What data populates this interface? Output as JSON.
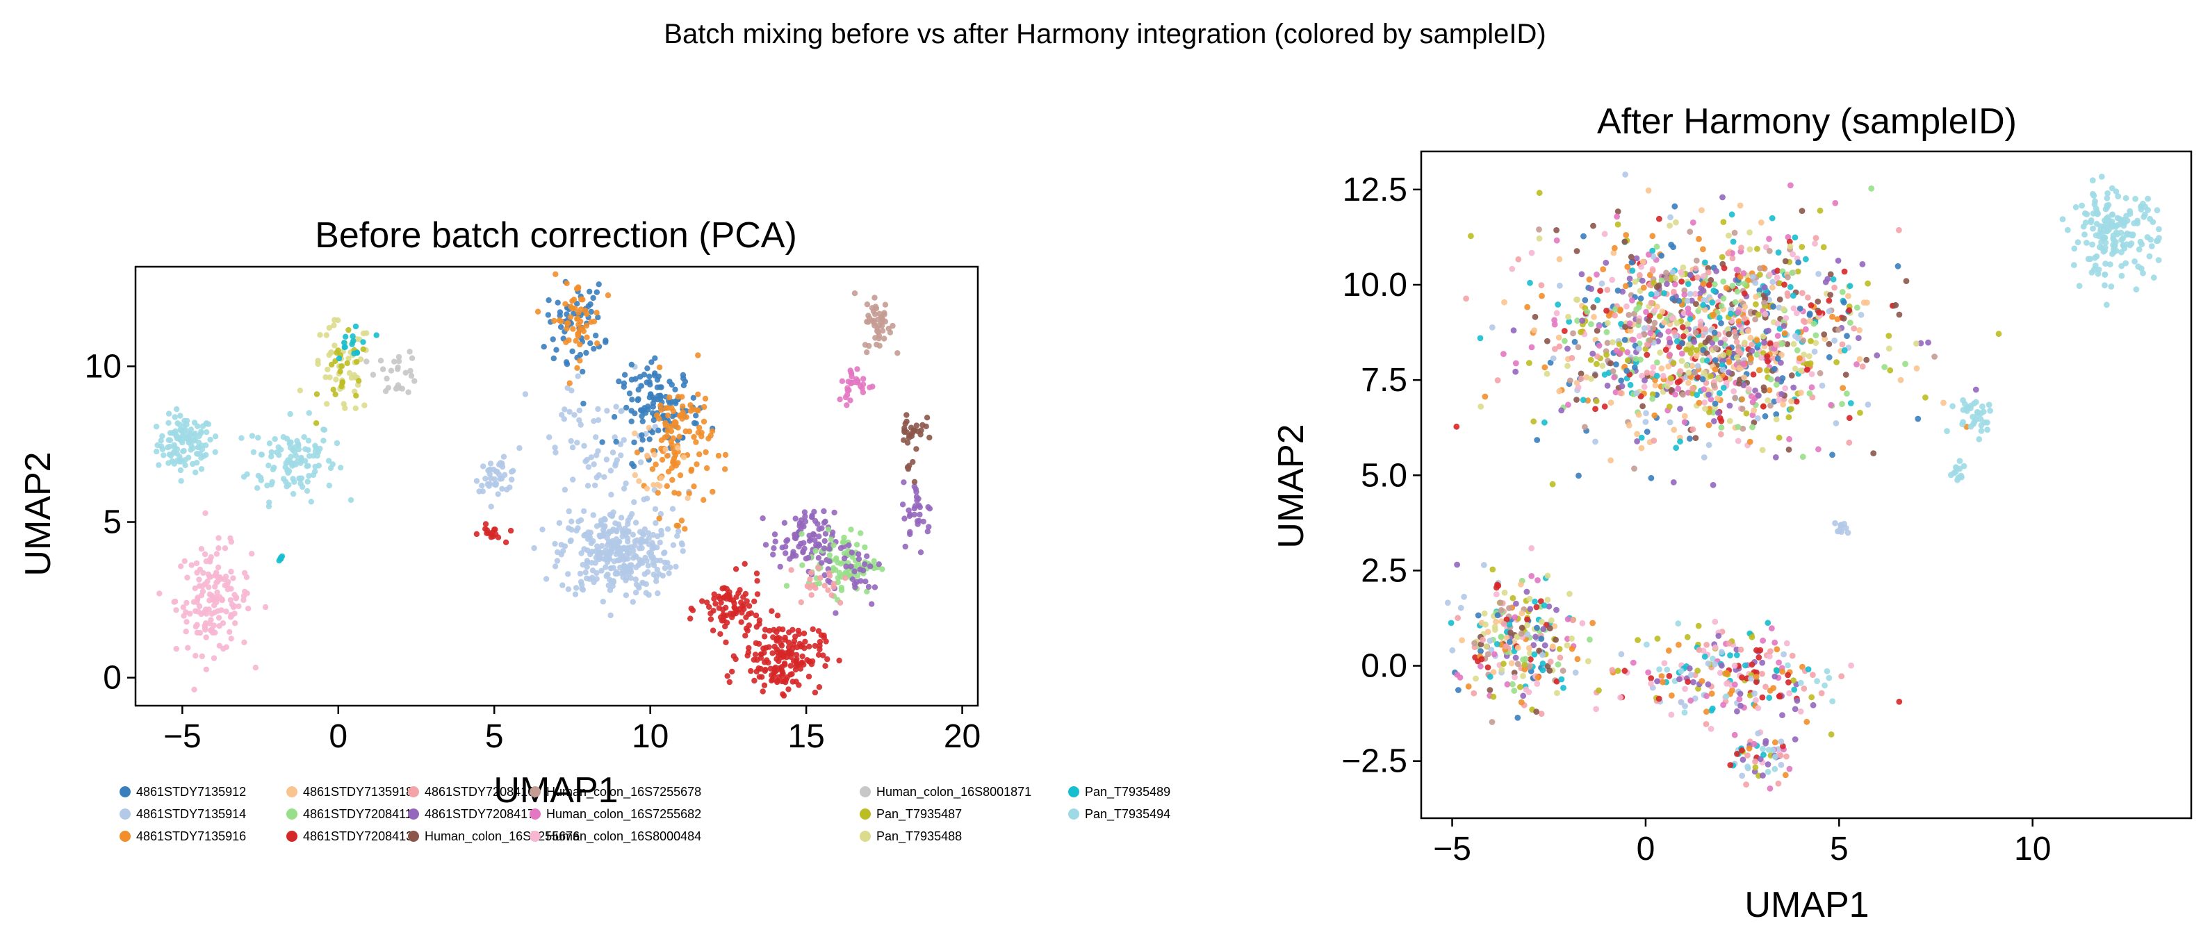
{
  "suptitle": "Batch mixing before vs after Harmony integration (colored by sampleID)",
  "legend_samples": [
    {
      "name": "4861STDY7135912",
      "color": "#3a7ebe"
    },
    {
      "name": "4861STDY7135914",
      "color": "#b3c9e8"
    },
    {
      "name": "4861STDY7135916",
      "color": "#f28e2b"
    },
    {
      "name": "4861STDY7135918",
      "color": "#f9c48f"
    },
    {
      "name": "4861STDY7208411",
      "color": "#98df8a"
    },
    {
      "name": "4861STDY7208413",
      "color": "#d62728"
    },
    {
      "name": "4861STDY7208416",
      "color": "#f4a3a8"
    },
    {
      "name": "4861STDY7208417",
      "color": "#9467bd"
    },
    {
      "name": "Human_colon_16S7255676",
      "color": "#8c564b"
    },
    {
      "name": "Human_colon_16S7255678",
      "color": "#c49c94"
    },
    {
      "name": "Human_colon_16S7255682",
      "color": "#e377c2"
    },
    {
      "name": "Human_colon_16S8000484",
      "color": "#f7b6d2"
    },
    {
      "name": "Human_colon_16S8001871",
      "color": "#c7c7c7"
    },
    {
      "name": "Pan_T7935487",
      "color": "#bcbd22"
    },
    {
      "name": "Pan_T7935488",
      "color": "#dbdb8d"
    },
    {
      "name": "Pan_T7935489",
      "color": "#17becf"
    },
    {
      "name": "Pan_T7935494",
      "color": "#9edae5"
    }
  ],
  "chart_data": [
    {
      "type": "scatter",
      "title": "Before batch correction (PCA)",
      "xlabel": "UMAP1",
      "ylabel": "UMAP2",
      "xlim": [
        -6.5,
        20.5
      ],
      "ylim": [
        -0.9,
        13.2
      ],
      "xticks": [
        -5,
        0,
        5,
        10,
        15,
        20
      ],
      "xtick_labels": [
        "−5",
        "0",
        "5",
        "10",
        "15",
        "20"
      ],
      "yticks": [
        0,
        5,
        10
      ],
      "ytick_labels": [
        "0",
        "5",
        "10"
      ],
      "grid": false,
      "legend": "below",
      "clusters": [
        {
          "sample": "Pan_T7935494",
          "cx": -4.9,
          "cy": 7.5,
          "sx": 0.45,
          "sy": 0.45,
          "n": 110
        },
        {
          "sample": "Pan_T7935494",
          "cx": -1.5,
          "cy": 7.0,
          "sx": 0.7,
          "sy": 0.65,
          "n": 110
        },
        {
          "sample": "Human_colon_16S8000484",
          "cx": -4.0,
          "cy": 2.5,
          "sx": 0.6,
          "sy": 0.85,
          "n": 150
        },
        {
          "sample": "Pan_T7935489",
          "cx": -1.8,
          "cy": 3.8,
          "sx": 0.08,
          "sy": 0.08,
          "n": 5
        },
        {
          "sample": "Pan_T7935488",
          "cx": 0.1,
          "cy": 9.9,
          "sx": 0.5,
          "sy": 0.75,
          "n": 50
        },
        {
          "sample": "Pan_T7935487",
          "cx": 0.2,
          "cy": 9.7,
          "sx": 0.4,
          "sy": 0.6,
          "n": 22
        },
        {
          "sample": "Pan_T7935489",
          "cx": 0.5,
          "cy": 10.7,
          "sx": 0.3,
          "sy": 0.45,
          "n": 14
        },
        {
          "sample": "Human_colon_16S8001871",
          "cx": 1.9,
          "cy": 9.8,
          "sx": 0.35,
          "sy": 0.35,
          "n": 25
        },
        {
          "sample": "4861STDY7135914",
          "cx": 5.1,
          "cy": 6.5,
          "sx": 0.35,
          "sy": 0.25,
          "n": 40
        },
        {
          "sample": "4861STDY7208413",
          "cx": 4.9,
          "cy": 4.6,
          "sx": 0.2,
          "sy": 0.15,
          "n": 16
        },
        {
          "sample": "4861STDY7135914",
          "cx": 8.9,
          "cy": 4.0,
          "sx": 0.9,
          "sy": 0.7,
          "n": 300
        },
        {
          "sample": "4861STDY7135914",
          "cx": 8.5,
          "cy": 7.2,
          "sx": 1.2,
          "sy": 1.3,
          "n": 70
        },
        {
          "sample": "4861STDY7135912",
          "cx": 7.6,
          "cy": 11.4,
          "sx": 0.45,
          "sy": 0.6,
          "n": 60
        },
        {
          "sample": "4861STDY7135916",
          "cx": 7.6,
          "cy": 11.5,
          "sx": 0.4,
          "sy": 0.65,
          "n": 50
        },
        {
          "sample": "4861STDY7135912",
          "cx": 10.3,
          "cy": 8.7,
          "sx": 0.65,
          "sy": 0.65,
          "n": 120
        },
        {
          "sample": "4861STDY7135916",
          "cx": 10.9,
          "cy": 7.5,
          "sx": 0.55,
          "sy": 1.1,
          "n": 110
        },
        {
          "sample": "4861STDY7135918",
          "cx": 10.2,
          "cy": 6.4,
          "sx": 0.6,
          "sy": 0.6,
          "n": 15
        },
        {
          "sample": "4861STDY7208413",
          "cx": 12.6,
          "cy": 2.2,
          "sx": 0.5,
          "sy": 0.5,
          "n": 80
        },
        {
          "sample": "4861STDY7208413",
          "cx": 14.2,
          "cy": 0.7,
          "sx": 0.65,
          "sy": 0.55,
          "n": 170
        },
        {
          "sample": "4861STDY7208417",
          "cx": 14.9,
          "cy": 4.4,
          "sx": 0.5,
          "sy": 0.45,
          "n": 80
        },
        {
          "sample": "4861STDY7208411",
          "cx": 16.2,
          "cy": 3.7,
          "sx": 0.55,
          "sy": 0.5,
          "n": 85
        },
        {
          "sample": "4861STDY7208417",
          "cx": 16.3,
          "cy": 3.5,
          "sx": 0.7,
          "sy": 0.6,
          "n": 40
        },
        {
          "sample": "4861STDY7208416",
          "cx": 15.4,
          "cy": 3.1,
          "sx": 0.5,
          "sy": 0.4,
          "n": 20
        },
        {
          "sample": "4861STDY7208417",
          "cx": 18.6,
          "cy": 5.3,
          "sx": 0.25,
          "sy": 0.5,
          "n": 30
        },
        {
          "sample": "Human_colon_16S7255678",
          "cx": 17.3,
          "cy": 11.4,
          "sx": 0.22,
          "sy": 0.45,
          "n": 45
        },
        {
          "sample": "Human_colon_16S7255682",
          "cx": 16.6,
          "cy": 9.4,
          "sx": 0.3,
          "sy": 0.3,
          "n": 30
        },
        {
          "sample": "Human_colon_16S7255676",
          "cx": 18.4,
          "cy": 8.0,
          "sx": 0.2,
          "sy": 0.35,
          "n": 25
        },
        {
          "sample": "Human_colon_16S7255676",
          "cx": 18.3,
          "cy": 6.8,
          "sx": 0.1,
          "sy": 0.3,
          "n": 6
        }
      ]
    },
    {
      "type": "scatter",
      "title": "After Harmony (sampleID)",
      "xlabel": "UMAP1",
      "ylabel": "UMAP2",
      "xlim": [
        -5.8,
        14.1
      ],
      "ylim": [
        -4.0,
        13.5
      ],
      "xticks": [
        -5,
        0,
        5,
        10
      ],
      "xtick_labels": [
        "−5",
        "0",
        "5",
        "10"
      ],
      "yticks": [
        -2.5,
        0.0,
        2.5,
        5.0,
        7.5,
        10.0,
        12.5
      ],
      "ytick_labels": [
        "−2.5",
        "0.0",
        "2.5",
        "5.0",
        "7.5",
        "10.0",
        "12.5"
      ],
      "grid": false,
      "clusters": [
        {
          "samples": "mixed_main",
          "cx": 1.6,
          "cy": 8.6,
          "sx": 2.1,
          "sy": 1.35,
          "n": 1250
        },
        {
          "samples": "mixed_main",
          "cx": -3.3,
          "cy": 0.7,
          "sx": 0.75,
          "sy": 0.85,
          "n": 260
        },
        {
          "samples": "mixed_low",
          "cx": 2.0,
          "cy": -0.2,
          "sx": 1.5,
          "sy": 0.55,
          "n": 230
        },
        {
          "samples": "mixed_low",
          "cx": 2.9,
          "cy": -2.4,
          "sx": 0.4,
          "sy": 0.35,
          "n": 60
        },
        {
          "sample": "Pan_T7935494",
          "cx": 12.1,
          "cy": 11.3,
          "sx": 0.55,
          "sy": 0.55,
          "n": 170
        },
        {
          "sample": "Pan_T7935494",
          "cx": 8.5,
          "cy": 6.6,
          "sx": 0.3,
          "sy": 0.25,
          "n": 35
        },
        {
          "sample": "Pan_T7935494",
          "cx": 8.1,
          "cy": 5.1,
          "sx": 0.12,
          "sy": 0.2,
          "n": 12
        },
        {
          "sample": "4861STDY7135914",
          "cx": 5.1,
          "cy": 3.6,
          "sx": 0.12,
          "sy": 0.15,
          "n": 10
        }
      ]
    }
  ]
}
